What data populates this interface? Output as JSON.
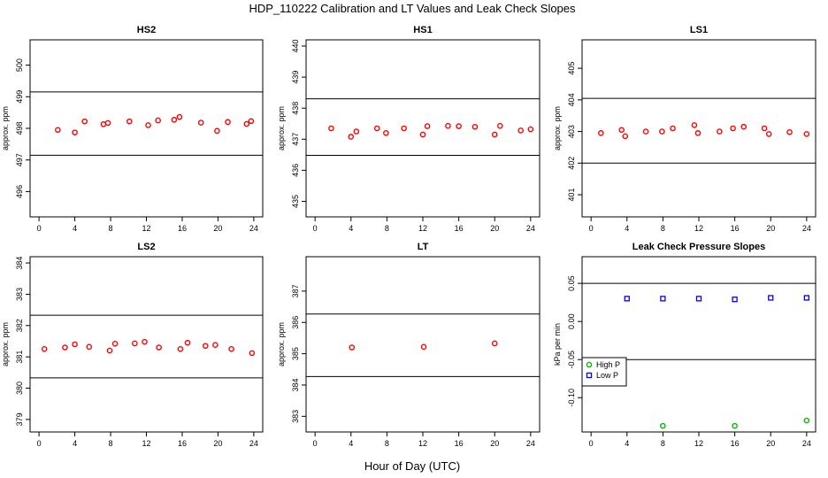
{
  "figure": {
    "title": "HDP_110222  Calibration and LT Values and Leak Check Slopes",
    "xlabel": "Hour of Day (UTC)"
  },
  "colors": {
    "cal_point": "#ff0000",
    "high_p": "#00bb00",
    "low_p": "#0000ff",
    "line": "#000000"
  },
  "chart_data": [
    {
      "type": "scatter",
      "title": "HS2",
      "ylabel": "approx. ppm",
      "xlim": [
        -1,
        25
      ],
      "ylim": [
        495.2,
        500.8
      ],
      "xticks": [
        0,
        4,
        8,
        12,
        16,
        20,
        24
      ],
      "yticks": [
        496,
        497,
        498,
        499,
        500
      ],
      "hlines": [
        497.15,
        499.15
      ],
      "x": [
        2.1,
        4.0,
        5.1,
        7.2,
        7.7,
        10.1,
        12.2,
        13.3,
        15.1,
        15.7,
        18.1,
        19.9,
        21.1,
        23.2,
        23.7
      ],
      "y": [
        497.95,
        497.87,
        498.22,
        498.13,
        498.17,
        498.22,
        498.1,
        498.25,
        498.27,
        498.36,
        498.18,
        497.92,
        498.2,
        498.14,
        498.23
      ]
    },
    {
      "type": "scatter",
      "title": "HS1",
      "ylabel": "approx. ppm",
      "xlim": [
        -1,
        25
      ],
      "ylim": [
        434.5,
        440.2
      ],
      "xticks": [
        0,
        4,
        8,
        12,
        16,
        20,
        24
      ],
      "yticks": [
        435,
        436,
        437,
        438,
        439,
        440
      ],
      "hlines": [
        436.48,
        438.3
      ],
      "x": [
        1.8,
        4.0,
        4.6,
        6.9,
        7.9,
        9.9,
        12.0,
        12.5,
        14.8,
        16.0,
        17.8,
        20.0,
        20.6,
        22.9,
        24.0
      ],
      "y": [
        437.35,
        437.08,
        437.25,
        437.35,
        437.2,
        437.35,
        437.15,
        437.42,
        437.43,
        437.42,
        437.4,
        437.15,
        437.43,
        437.28,
        437.32
      ]
    },
    {
      "type": "scatter",
      "title": "LS1",
      "ylabel": "approx. ppm",
      "xlim": [
        -1,
        25
      ],
      "ylim": [
        400.3,
        405.9
      ],
      "xticks": [
        0,
        4,
        8,
        12,
        16,
        20,
        24
      ],
      "yticks": [
        401,
        402,
        403,
        404,
        405
      ],
      "hlines": [
        402.0,
        404.05
      ],
      "x": [
        1.1,
        3.4,
        3.8,
        6.1,
        7.9,
        9.1,
        11.5,
        11.9,
        14.3,
        15.8,
        17.0,
        19.3,
        19.8,
        22.1,
        24.0
      ],
      "y": [
        402.95,
        403.05,
        402.85,
        403.0,
        403.0,
        403.1,
        403.2,
        402.95,
        403.0,
        403.1,
        403.15,
        403.1,
        402.92,
        402.98,
        402.92
      ]
    },
    {
      "type": "scatter",
      "title": "LS2",
      "ylabel": "approx. ppm",
      "xlim": [
        -1,
        25
      ],
      "ylim": [
        378.6,
        384.2
      ],
      "xticks": [
        0,
        4,
        8,
        12,
        16,
        20,
        24
      ],
      "yticks": [
        379,
        380,
        381,
        382,
        383,
        384
      ],
      "hlines": [
        380.33,
        382.33
      ],
      "x": [
        0.6,
        2.9,
        4.0,
        5.6,
        7.9,
        8.5,
        10.7,
        11.8,
        13.4,
        15.8,
        16.6,
        18.6,
        19.7,
        21.5,
        23.8
      ],
      "y": [
        381.25,
        381.3,
        381.4,
        381.32,
        381.2,
        381.42,
        381.43,
        381.48,
        381.3,
        381.25,
        381.45,
        381.35,
        381.38,
        381.25,
        381.12
      ]
    },
    {
      "type": "scatter",
      "title": "LT",
      "ylabel": "approx. ppm",
      "xlim": [
        -1,
        25
      ],
      "ylim": [
        382.5,
        388.1
      ],
      "xticks": [
        0,
        4,
        8,
        12,
        16,
        20,
        24
      ],
      "yticks": [
        383,
        384,
        385,
        386,
        387
      ],
      "hlines": [
        384.27,
        386.27
      ],
      "x": [
        4.1,
        12.1,
        20.0
      ],
      "y": [
        385.2,
        385.22,
        385.33
      ]
    },
    {
      "type": "scatter",
      "title": "Leak Check Pressure Slopes",
      "ylabel": "kPa per min",
      "xlim": [
        -1,
        25
      ],
      "ylim": [
        -0.145,
        0.085
      ],
      "xticks": [
        0,
        4,
        8,
        12,
        16,
        20,
        24
      ],
      "yticks": [
        -0.1,
        -0.05,
        0.0,
        0.05
      ],
      "ytick_labels": [
        "-0.10",
        "-0.05",
        "0.00",
        "0.05"
      ],
      "hlines": [
        -0.05,
        0.05
      ],
      "legend": {
        "position": "bottom-left",
        "entries": [
          "High P",
          "Low P"
        ]
      },
      "series": [
        {
          "name": "High P",
          "marker": "circle",
          "x": [
            8,
            16,
            24
          ],
          "y": [
            -0.137,
            -0.137,
            -0.13
          ]
        },
        {
          "name": "Low P",
          "marker": "square",
          "x": [
            4,
            8,
            12,
            16,
            20,
            24
          ],
          "y": [
            0.03,
            0.03,
            0.03,
            0.029,
            0.031,
            0.031
          ]
        }
      ]
    }
  ]
}
